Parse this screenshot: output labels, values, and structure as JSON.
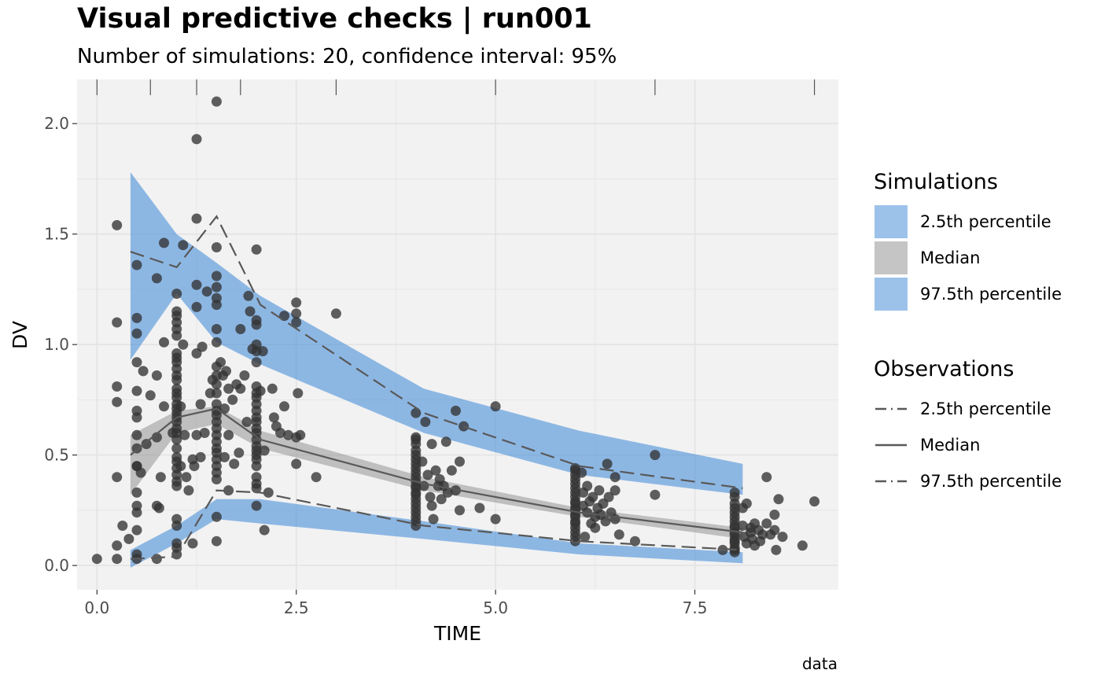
{
  "chart_data": {
    "type": "scatter",
    "title": "Visual predictive checks | run001",
    "subtitle": "Number of simulations: 20, confidence interval: 95%",
    "xlabel": "TIME",
    "ylabel": "DV",
    "caption": "data",
    "xlim": [
      -0.25,
      9.3
    ],
    "ylim": [
      -0.11,
      2.2
    ],
    "x_ticks": [
      0.0,
      2.5,
      5.0,
      7.5
    ],
    "x_tick_labels": [
      "0.0",
      "2.5",
      "5.0",
      "7.5"
    ],
    "y_ticks": [
      0.0,
      0.5,
      1.0,
      1.5,
      2.0
    ],
    "y_tick_labels": [
      "0.0",
      "0.5",
      "1.0",
      "1.5",
      "2.0"
    ],
    "grid": true,
    "bin_separators": [
      0,
      0.67,
      1.25,
      1.8,
      3.0,
      5.0,
      7.0,
      9.0
    ],
    "colors": {
      "panel": "#f2f2f2",
      "grid": "#e3e3e3",
      "outer_band": "#4a90d9",
      "median_band": "#8c8c8c",
      "obs_line": "#595959",
      "points": "#333333"
    },
    "bin_x": [
      0.42,
      1.0,
      1.5,
      2.05,
      4.1,
      6.05,
      8.1
    ],
    "simulations": {
      "p2_5": {
        "name": "2.5th percentile",
        "lower": [
          -0.01,
          0.1,
          0.21,
          0.19,
          0.12,
          0.05,
          0.01
        ],
        "upper": [
          0.07,
          0.18,
          0.3,
          0.3,
          0.2,
          0.1,
          0.06
        ]
      },
      "median": {
        "name": "Median",
        "lower": [
          0.32,
          0.6,
          0.64,
          0.53,
          0.34,
          0.22,
          0.12
        ],
        "upper": [
          0.59,
          0.7,
          0.72,
          0.61,
          0.4,
          0.26,
          0.17
        ]
      },
      "p97_5": {
        "name": "97.5th percentile",
        "lower": [
          0.93,
          1.23,
          1.01,
          0.91,
          0.6,
          0.41,
          0.32
        ],
        "upper": [
          1.78,
          1.5,
          1.37,
          1.22,
          0.8,
          0.61,
          0.46
        ]
      }
    },
    "observations": {
      "p2_5": {
        "name": "2.5th percentile",
        "values": [
          0.03,
          0.04,
          0.34,
          0.33,
          0.18,
          0.11,
          0.07
        ]
      },
      "median": {
        "name": "Median",
        "values": [
          0.5,
          0.67,
          0.71,
          0.57,
          0.37,
          0.24,
          0.15
        ]
      },
      "p97_5": {
        "name": "97.5th percentile",
        "values": [
          1.42,
          1.35,
          1.58,
          1.18,
          0.69,
          0.45,
          0.35
        ]
      },
      "points": [
        [
          0.0,
          0.03
        ],
        [
          0.25,
          1.54
        ],
        [
          0.25,
          1.1
        ],
        [
          0.25,
          0.81
        ],
        [
          0.25,
          0.74
        ],
        [
          0.25,
          0.4
        ],
        [
          0.25,
          0.09
        ],
        [
          0.25,
          0.03
        ],
        [
          0.32,
          0.18
        ],
        [
          0.4,
          0.12
        ],
        [
          0.5,
          1.36
        ],
        [
          0.5,
          1.12
        ],
        [
          0.5,
          1.05
        ],
        [
          0.5,
          0.92
        ],
        [
          0.5,
          0.79
        ],
        [
          0.5,
          0.7
        ],
        [
          0.5,
          0.67
        ],
        [
          0.5,
          0.59
        ],
        [
          0.5,
          0.53
        ],
        [
          0.5,
          0.45
        ],
        [
          0.5,
          0.45
        ],
        [
          0.5,
          0.33
        ],
        [
          0.5,
          0.27
        ],
        [
          0.5,
          0.24
        ],
        [
          0.5,
          0.16
        ],
        [
          0.5,
          0.05
        ],
        [
          0.5,
          0.03
        ],
        [
          0.55,
          0.42
        ],
        [
          0.58,
          0.88
        ],
        [
          0.62,
          0.55
        ],
        [
          0.67,
          0.77
        ],
        [
          0.75,
          1.3
        ],
        [
          0.75,
          0.86
        ],
        [
          0.75,
          0.58
        ],
        [
          0.75,
          0.27
        ],
        [
          0.75,
          0.03
        ],
        [
          0.78,
          0.26
        ],
        [
          0.8,
          0.4
        ],
        [
          0.84,
          1.46
        ],
        [
          0.84,
          1.01
        ],
        [
          0.84,
          0.72
        ],
        [
          1.0,
          1.23
        ],
        [
          1.0,
          1.15
        ],
        [
          1.0,
          1.13
        ],
        [
          1.0,
          1.1
        ],
        [
          1.0,
          1.07
        ],
        [
          1.0,
          1.04
        ],
        [
          1.0,
          0.96
        ],
        [
          1.0,
          0.94
        ],
        [
          1.0,
          0.92
        ],
        [
          1.0,
          0.89
        ],
        [
          1.0,
          0.86
        ],
        [
          1.0,
          0.84
        ],
        [
          1.0,
          0.8
        ],
        [
          1.0,
          0.78
        ],
        [
          1.0,
          0.76
        ],
        [
          1.0,
          0.73
        ],
        [
          1.0,
          0.71
        ],
        [
          1.0,
          0.69
        ],
        [
          1.0,
          0.67
        ],
        [
          1.0,
          0.65
        ],
        [
          1.0,
          0.62
        ],
        [
          1.0,
          0.6
        ],
        [
          1.0,
          0.57
        ],
        [
          1.0,
          0.53
        ],
        [
          1.0,
          0.49
        ],
        [
          1.0,
          0.47
        ],
        [
          1.0,
          0.44
        ],
        [
          1.0,
          0.41
        ],
        [
          1.0,
          0.38
        ],
        [
          1.0,
          0.36
        ],
        [
          1.0,
          0.21
        ],
        [
          1.0,
          0.18
        ],
        [
          1.0,
          0.1
        ],
        [
          1.0,
          0.08
        ],
        [
          1.0,
          0.05
        ],
        [
          0.95,
          0.6
        ],
        [
          1.05,
          0.72
        ],
        [
          1.05,
          0.45
        ],
        [
          1.08,
          1.45
        ],
        [
          1.08,
          1.0
        ],
        [
          1.1,
          0.59
        ],
        [
          1.12,
          0.4
        ],
        [
          1.15,
          0.34
        ],
        [
          1.2,
          0.48
        ],
        [
          1.2,
          0.1
        ],
        [
          1.22,
          0.45
        ],
        [
          1.25,
          1.93
        ],
        [
          1.25,
          1.57
        ],
        [
          1.25,
          1.27
        ],
        [
          1.25,
          1.17
        ],
        [
          1.25,
          0.96
        ],
        [
          1.25,
          0.59
        ],
        [
          1.3,
          0.49
        ],
        [
          1.3,
          0.73
        ],
        [
          1.32,
          0.99
        ],
        [
          1.35,
          0.6
        ],
        [
          1.38,
          1.24
        ],
        [
          1.42,
          0.78
        ],
        [
          1.45,
          0.84
        ],
        [
          1.5,
          2.1
        ],
        [
          1.5,
          1.44
        ],
        [
          1.5,
          1.31
        ],
        [
          1.5,
          1.26
        ],
        [
          1.5,
          1.21
        ],
        [
          1.5,
          1.18
        ],
        [
          1.5,
          1.07
        ],
        [
          1.5,
          1.01
        ],
        [
          1.5,
          0.9
        ],
        [
          1.5,
          0.86
        ],
        [
          1.5,
          0.82
        ],
        [
          1.5,
          0.78
        ],
        [
          1.5,
          0.73
        ],
        [
          1.5,
          0.7
        ],
        [
          1.5,
          0.68
        ],
        [
          1.5,
          0.65
        ],
        [
          1.5,
          0.62
        ],
        [
          1.5,
          0.59
        ],
        [
          1.5,
          0.56
        ],
        [
          1.5,
          0.53
        ],
        [
          1.5,
          0.51
        ],
        [
          1.5,
          0.48
        ],
        [
          1.5,
          0.45
        ],
        [
          1.5,
          0.42
        ],
        [
          1.5,
          0.39
        ],
        [
          1.5,
          0.22
        ],
        [
          1.5,
          0.11
        ],
        [
          1.55,
          0.92
        ],
        [
          1.58,
          0.86
        ],
        [
          1.6,
          0.71
        ],
        [
          1.6,
          0.49
        ],
        [
          1.62,
          0.88
        ],
        [
          1.65,
          0.8
        ],
        [
          1.65,
          0.59
        ],
        [
          1.65,
          0.34
        ],
        [
          1.7,
          0.75
        ],
        [
          1.72,
          0.46
        ],
        [
          1.75,
          0.82
        ],
        [
          1.78,
          0.51
        ],
        [
          1.8,
          1.07
        ],
        [
          1.8,
          0.8
        ],
        [
          1.85,
          0.86
        ],
        [
          1.88,
          0.65
        ],
        [
          1.9,
          1.22
        ],
        [
          1.92,
          1.15
        ],
        [
          1.95,
          0.98
        ],
        [
          2.0,
          1.43
        ],
        [
          2.0,
          1.11
        ],
        [
          2.0,
          1.09
        ],
        [
          2.0,
          1.0
        ],
        [
          2.0,
          0.97
        ],
        [
          2.0,
          0.92
        ],
        [
          2.0,
          0.81
        ],
        [
          2.0,
          0.78
        ],
        [
          2.0,
          0.76
        ],
        [
          2.0,
          0.73
        ],
        [
          2.0,
          0.7
        ],
        [
          2.0,
          0.67
        ],
        [
          2.0,
          0.65
        ],
        [
          2.0,
          0.62
        ],
        [
          2.0,
          0.6
        ],
        [
          2.0,
          0.57
        ],
        [
          2.0,
          0.54
        ],
        [
          2.0,
          0.52
        ],
        [
          2.0,
          0.5
        ],
        [
          2.0,
          0.48
        ],
        [
          2.0,
          0.45
        ],
        [
          2.0,
          0.4
        ],
        [
          2.0,
          0.37
        ],
        [
          2.0,
          0.35
        ],
        [
          2.0,
          0.27
        ],
        [
          2.05,
          0.79
        ],
        [
          2.08,
          0.97
        ],
        [
          2.1,
          0.52
        ],
        [
          2.1,
          0.16
        ],
        [
          2.15,
          0.33
        ],
        [
          2.2,
          0.8
        ],
        [
          2.22,
          0.67
        ],
        [
          2.25,
          0.63
        ],
        [
          2.3,
          0.6
        ],
        [
          2.35,
          1.13
        ],
        [
          2.35,
          0.72
        ],
        [
          2.4,
          0.59
        ],
        [
          2.5,
          1.19
        ],
        [
          2.5,
          1.14
        ],
        [
          2.5,
          1.1
        ],
        [
          2.52,
          0.78
        ],
        [
          2.5,
          0.58
        ],
        [
          2.5,
          0.46
        ],
        [
          2.55,
          0.59
        ],
        [
          2.75,
          0.4
        ],
        [
          3.0,
          1.14
        ],
        [
          4.0,
          0.69
        ],
        [
          4.0,
          0.58
        ],
        [
          4.0,
          0.57
        ],
        [
          4.0,
          0.55
        ],
        [
          4.0,
          0.52
        ],
        [
          4.0,
          0.5
        ],
        [
          4.0,
          0.48
        ],
        [
          4.0,
          0.46
        ],
        [
          4.0,
          0.44
        ],
        [
          4.0,
          0.42
        ],
        [
          4.0,
          0.4
        ],
        [
          4.0,
          0.38
        ],
        [
          4.0,
          0.36
        ],
        [
          4.0,
          0.35
        ],
        [
          4.0,
          0.33
        ],
        [
          4.0,
          0.32
        ],
        [
          4.0,
          0.3
        ],
        [
          4.0,
          0.28
        ],
        [
          4.0,
          0.26
        ],
        [
          4.0,
          0.24
        ],
        [
          4.0,
          0.22
        ],
        [
          4.0,
          0.2
        ],
        [
          4.0,
          0.18
        ],
        [
          4.08,
          0.47
        ],
        [
          4.1,
          0.36
        ],
        [
          4.12,
          0.65
        ],
        [
          4.15,
          0.41
        ],
        [
          4.18,
          0.31
        ],
        [
          4.2,
          0.55
        ],
        [
          4.2,
          0.27
        ],
        [
          4.22,
          0.21
        ],
        [
          4.25,
          0.43
        ],
        [
          4.28,
          0.36
        ],
        [
          4.3,
          0.39
        ],
        [
          4.32,
          0.3
        ],
        [
          4.35,
          0.36
        ],
        [
          4.38,
          0.56
        ],
        [
          4.4,
          0.33
        ],
        [
          4.45,
          0.43
        ],
        [
          4.5,
          0.7
        ],
        [
          4.5,
          0.34
        ],
        [
          4.55,
          0.47
        ],
        [
          4.55,
          0.25
        ],
        [
          4.6,
          0.63
        ],
        [
          4.8,
          0.26
        ],
        [
          5.0,
          0.72
        ],
        [
          5.0,
          0.21
        ],
        [
          6.0,
          0.44
        ],
        [
          6.0,
          0.43
        ],
        [
          6.0,
          0.41
        ],
        [
          6.0,
          0.39
        ],
        [
          6.0,
          0.37
        ],
        [
          6.0,
          0.35
        ],
        [
          6.0,
          0.33
        ],
        [
          6.0,
          0.31
        ],
        [
          6.0,
          0.29
        ],
        [
          6.0,
          0.28
        ],
        [
          6.0,
          0.26
        ],
        [
          6.0,
          0.25
        ],
        [
          6.0,
          0.23
        ],
        [
          6.0,
          0.22
        ],
        [
          6.0,
          0.2
        ],
        [
          6.0,
          0.19
        ],
        [
          6.0,
          0.17
        ],
        [
          6.0,
          0.15
        ],
        [
          6.0,
          0.13
        ],
        [
          6.0,
          0.11
        ],
        [
          6.08,
          0.42
        ],
        [
          6.1,
          0.33
        ],
        [
          6.1,
          0.27
        ],
        [
          6.12,
          0.13
        ],
        [
          6.15,
          0.36
        ],
        [
          6.15,
          0.24
        ],
        [
          6.18,
          0.29
        ],
        [
          6.2,
          0.19
        ],
        [
          6.22,
          0.31
        ],
        [
          6.25,
          0.22
        ],
        [
          6.25,
          0.17
        ],
        [
          6.28,
          0.26
        ],
        [
          6.3,
          0.34
        ],
        [
          6.32,
          0.23
        ],
        [
          6.35,
          0.28
        ],
        [
          6.38,
          0.2
        ],
        [
          6.4,
          0.46
        ],
        [
          6.42,
          0.31
        ],
        [
          6.45,
          0.24
        ],
        [
          6.5,
          0.4
        ],
        [
          6.5,
          0.34
        ],
        [
          6.5,
          0.21
        ],
        [
          6.55,
          0.14
        ],
        [
          6.75,
          0.11
        ],
        [
          7.0,
          0.5
        ],
        [
          7.0,
          0.32
        ],
        [
          8.0,
          0.33
        ],
        [
          8.0,
          0.31
        ],
        [
          8.0,
          0.28
        ],
        [
          8.0,
          0.26
        ],
        [
          8.0,
          0.24
        ],
        [
          8.0,
          0.22
        ],
        [
          8.0,
          0.2
        ],
        [
          8.0,
          0.18
        ],
        [
          8.0,
          0.17
        ],
        [
          8.0,
          0.15
        ],
        [
          8.0,
          0.14
        ],
        [
          8.0,
          0.12
        ],
        [
          8.0,
          0.11
        ],
        [
          8.0,
          0.1
        ],
        [
          8.0,
          0.08
        ],
        [
          8.0,
          0.07
        ],
        [
          8.0,
          0.06
        ],
        [
          7.85,
          0.07
        ],
        [
          8.1,
          0.26
        ],
        [
          8.1,
          0.18
        ],
        [
          8.12,
          0.13
        ],
        [
          8.15,
          0.28
        ],
        [
          8.15,
          0.1
        ],
        [
          8.2,
          0.17
        ],
        [
          8.2,
          0.15
        ],
        [
          8.22,
          0.12
        ],
        [
          8.25,
          0.19
        ],
        [
          8.25,
          0.09
        ],
        [
          8.3,
          0.16
        ],
        [
          8.32,
          0.11
        ],
        [
          8.35,
          0.14
        ],
        [
          8.4,
          0.4
        ],
        [
          8.4,
          0.19
        ],
        [
          8.45,
          0.14
        ],
        [
          8.5,
          0.23
        ],
        [
          8.5,
          0.16
        ],
        [
          8.52,
          0.07
        ],
        [
          8.55,
          0.3
        ],
        [
          8.6,
          0.13
        ],
        [
          8.85,
          0.09
        ],
        [
          9.0,
          0.29
        ]
      ]
    }
  },
  "legend": {
    "simulations_title": "Simulations",
    "simulations_items": [
      "2.5th percentile",
      "Median",
      "97.5th percentile"
    ],
    "observations_title": "Observations",
    "observations_items": [
      "2.5th percentile",
      "Median",
      "97.5th percentile"
    ]
  }
}
